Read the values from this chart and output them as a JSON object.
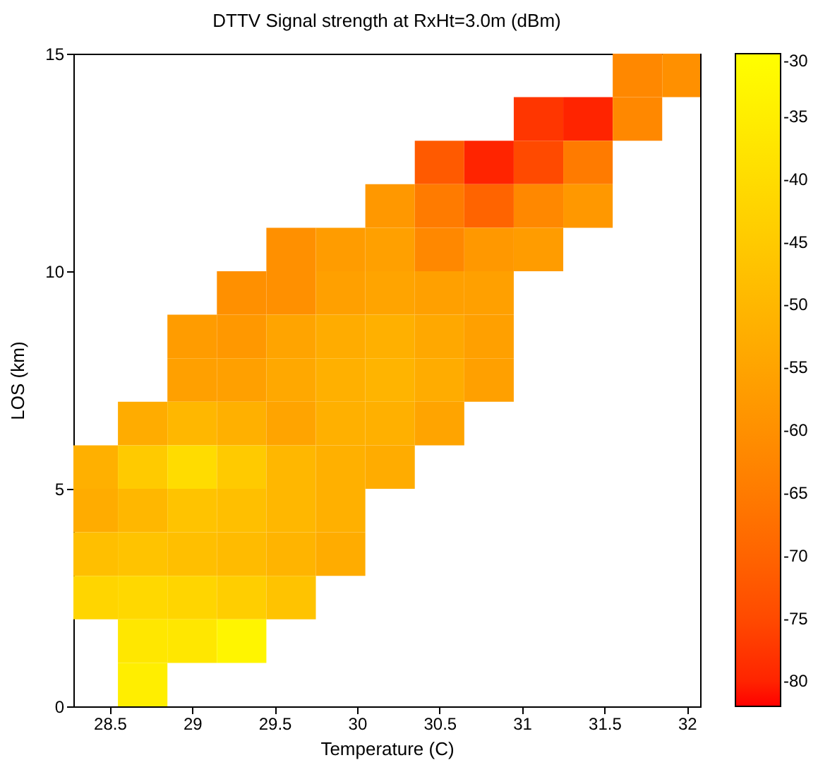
{
  "chart_data": {
    "type": "scatter",
    "title": "DTTV Signal strength at RxHt=3.0m (dBm)",
    "xlabel": "Temperature (C)",
    "ylabel": "LOS (km)",
    "marker": "square",
    "x": [
      31.7,
      32.0,
      31.1,
      31.4,
      31.7,
      30.5,
      30.8,
      31.1,
      31.4,
      30.2,
      30.5,
      30.8,
      31.1,
      31.4,
      29.6,
      29.9,
      30.2,
      30.5,
      30.8,
      31.1,
      29.3,
      29.6,
      29.9,
      30.2,
      30.5,
      30.8,
      29.0,
      29.3,
      29.6,
      29.9,
      30.2,
      30.5,
      30.8,
      29.0,
      29.3,
      29.6,
      29.9,
      30.2,
      30.5,
      30.8,
      28.7,
      29.0,
      29.3,
      29.6,
      29.9,
      30.2,
      30.5,
      28.4,
      28.7,
      29.0,
      29.3,
      29.6,
      29.9,
      30.2,
      28.4,
      28.7,
      29.0,
      29.3,
      29.6,
      29.9,
      28.4,
      28.7,
      29.0,
      29.3,
      29.6,
      29.9,
      28.4,
      28.7,
      29.0,
      29.3,
      29.6,
      28.7,
      29.0,
      29.3,
      28.7
    ],
    "values": [
      14.5,
      14.5,
      13.5,
      13.5,
      13.5,
      12.5,
      12.5,
      12.5,
      12.5,
      11.5,
      11.5,
      11.5,
      11.5,
      11.5,
      10.5,
      10.5,
      10.5,
      10.5,
      10.5,
      10.5,
      9.5,
      9.5,
      9.5,
      9.5,
      9.5,
      9.5,
      8.5,
      8.5,
      8.5,
      8.5,
      8.5,
      8.5,
      8.5,
      7.5,
      7.5,
      7.5,
      7.5,
      7.5,
      7.5,
      7.5,
      6.5,
      6.5,
      6.5,
      6.5,
      6.5,
      6.5,
      6.5,
      5.5,
      5.5,
      5.5,
      5.5,
      5.5,
      5.5,
      5.5,
      4.5,
      4.5,
      4.5,
      4.5,
      4.5,
      4.5,
      3.5,
      3.5,
      3.5,
      3.5,
      3.5,
      3.5,
      2.5,
      2.5,
      2.5,
      2.5,
      2.5,
      1.5,
      1.5,
      1.5,
      0.5
    ],
    "cvalues": [
      -62,
      -60,
      -78,
      -80,
      -62,
      -72,
      -80,
      -75,
      -65,
      -58,
      -65,
      -70,
      -62,
      -58,
      -60,
      -57,
      -56,
      -62,
      -58,
      -57,
      -60,
      -60,
      -56,
      -55,
      -56,
      -56,
      -57,
      -58,
      -55,
      -53,
      -52,
      -54,
      -56,
      -56,
      -56,
      -54,
      -52,
      -51,
      -53,
      -56,
      -53,
      -50,
      -52,
      -55,
      -52,
      -52,
      -55,
      -52,
      -45,
      -40,
      -45,
      -50,
      -52,
      -53,
      -53,
      -50,
      -47,
      -48,
      -50,
      -52,
      -48,
      -47,
      -48,
      -49,
      -51,
      -53,
      -42,
      -41,
      -42,
      -44,
      -47,
      -37,
      -37,
      -33,
      -35
    ],
    "clim": [
      -82,
      -30
    ],
    "cticks": [
      -30,
      -35,
      -40,
      -45,
      -50,
      -55,
      -60,
      -65,
      -70,
      -75,
      -80
    ],
    "xlim": [
      28.28,
      32.08
    ],
    "xticks": [
      28.5,
      29,
      29.5,
      30,
      30.5,
      31,
      31.5,
      32
    ],
    "ylim": [
      0,
      15
    ],
    "yticks": [
      0,
      5,
      10,
      15
    ]
  }
}
